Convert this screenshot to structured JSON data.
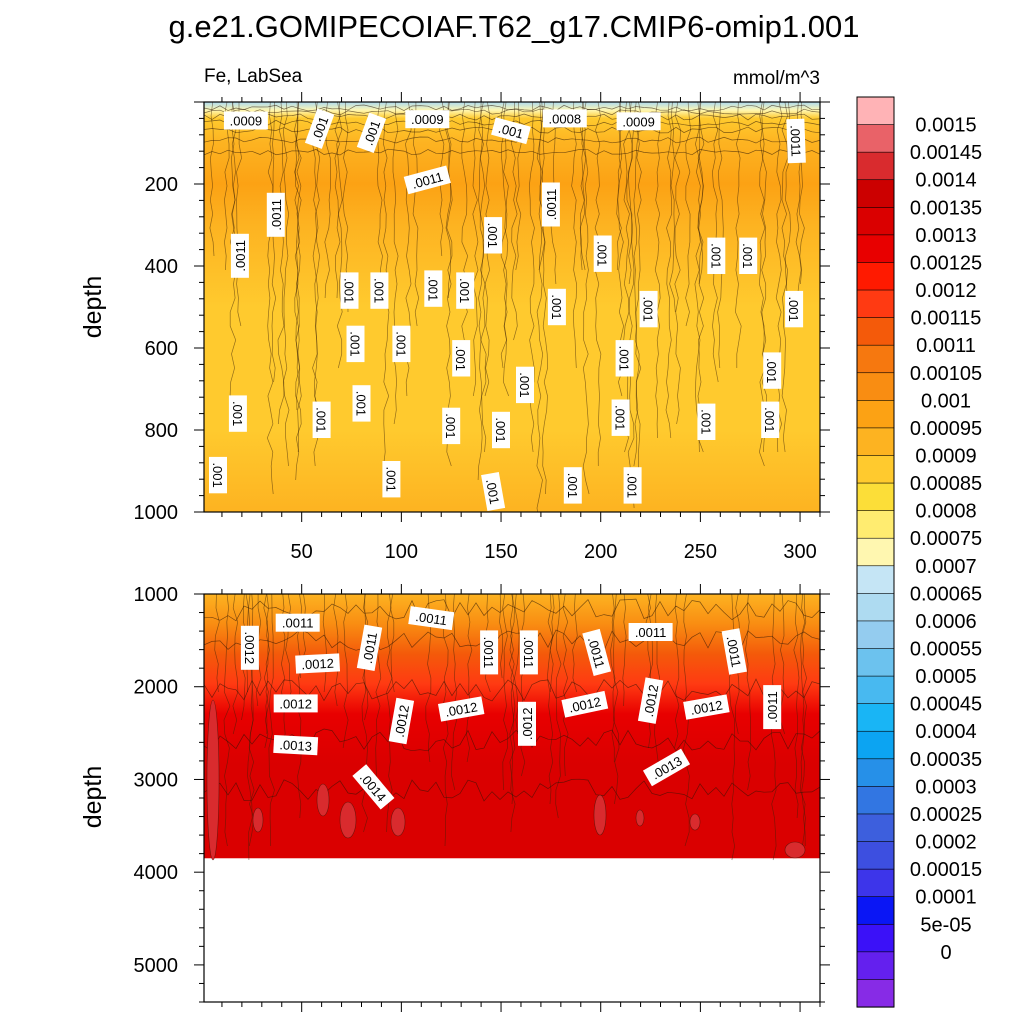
{
  "chart_data": {
    "type": "heatmap",
    "title": "g.e21.GOMIPECOIAF.T62_g17.CMIP6-omip1.001",
    "left_subtitle": "Fe, LabSea",
    "right_subtitle": "mmol/m^3",
    "xlabel": "",
    "ylabel": "depth",
    "panels": [
      {
        "name": "upper",
        "ylim": [
          1000,
          0
        ],
        "xlim": [
          1,
          310
        ],
        "y_ticks": [
          {
            "value": 200,
            "label": "200"
          },
          {
            "value": 400,
            "label": "400"
          },
          {
            "value": 600,
            "label": "600"
          },
          {
            "value": 800,
            "label": "800"
          },
          {
            "value": 1000,
            "label": "1000"
          }
        ],
        "x_ticks": [
          {
            "value": 50,
            "label": "50"
          },
          {
            "value": 100,
            "label": "100"
          },
          {
            "value": 150,
            "label": "150"
          },
          {
            "value": 200,
            "label": "200"
          },
          {
            "value": 250,
            "label": "250"
          },
          {
            "value": 300,
            "label": "300"
          }
        ],
        "depth_profile": [
          {
            "depth": 0,
            "value": 0.00072
          },
          {
            "depth": 20,
            "value": 0.00082
          },
          {
            "depth": 40,
            "value": 0.00095
          },
          {
            "depth": 100,
            "value": 0.00105
          },
          {
            "depth": 200,
            "value": 0.00108
          },
          {
            "depth": 300,
            "value": 0.00102
          },
          {
            "depth": 500,
            "value": 0.00097
          },
          {
            "depth": 800,
            "value": 0.00098
          },
          {
            "depth": 1000,
            "value": 0.00102
          }
        ],
        "contour_labels": [
          {
            "text": ".0009",
            "x": 22,
            "depth": 45,
            "angle": 0
          },
          {
            "text": ".001",
            "x": 59,
            "depth": 65,
            "angle": -70
          },
          {
            "text": ".001",
            "x": 85,
            "depth": 75,
            "angle": -70
          },
          {
            "text": ".0009",
            "x": 113,
            "depth": 42,
            "angle": 0
          },
          {
            "text": ".001",
            "x": 155,
            "depth": 70,
            "angle": 15
          },
          {
            "text": ".0008",
            "x": 182,
            "depth": 40,
            "angle": 0
          },
          {
            "text": ".0009",
            "x": 219,
            "depth": 47,
            "angle": 0
          },
          {
            "text": ".0011",
            "x": 298,
            "depth": 95,
            "angle": 88
          },
          {
            "text": ".0011",
            "x": 113,
            "depth": 190,
            "angle": -15
          },
          {
            "text": ".0011",
            "x": 175,
            "depth": 250,
            "angle": -90
          },
          {
            "text": ".0011",
            "x": 37,
            "depth": 275,
            "angle": -90
          },
          {
            "text": ".0011",
            "x": 19,
            "depth": 375,
            "angle": -90
          },
          {
            "text": ".001",
            "x": 146,
            "depth": 325,
            "angle": 90
          },
          {
            "text": ".001",
            "x": 201,
            "depth": 370,
            "angle": 90
          },
          {
            "text": ".001",
            "x": 258,
            "depth": 375,
            "angle": 90
          },
          {
            "text": ".001",
            "x": 274,
            "depth": 375,
            "angle": 90
          },
          {
            "text": ".001",
            "x": 74,
            "depth": 460,
            "angle": 90
          },
          {
            "text": ".001",
            "x": 89,
            "depth": 460,
            "angle": 90
          },
          {
            "text": ".001",
            "x": 116,
            "depth": 455,
            "angle": 90
          },
          {
            "text": ".001",
            "x": 132,
            "depth": 460,
            "angle": 90
          },
          {
            "text": ".001",
            "x": 178,
            "depth": 500,
            "angle": 90
          },
          {
            "text": ".001",
            "x": 224,
            "depth": 505,
            "angle": 90
          },
          {
            "text": ".001",
            "x": 297,
            "depth": 505,
            "angle": 90
          },
          {
            "text": ".001",
            "x": 77,
            "depth": 590,
            "angle": 90
          },
          {
            "text": ".001",
            "x": 100,
            "depth": 590,
            "angle": 90
          },
          {
            "text": ".001",
            "x": 130,
            "depth": 625,
            "angle": 90
          },
          {
            "text": ".001",
            "x": 212,
            "depth": 625,
            "angle": 90
          },
          {
            "text": ".001",
            "x": 286,
            "depth": 655,
            "angle": 90
          },
          {
            "text": ".001",
            "x": 162,
            "depth": 690,
            "angle": 90
          },
          {
            "text": ".001",
            "x": 18,
            "depth": 760,
            "angle": 90
          },
          {
            "text": ".001",
            "x": 60,
            "depth": 775,
            "angle": 90
          },
          {
            "text": ".001",
            "x": 80,
            "depth": 735,
            "angle": 90
          },
          {
            "text": ".001",
            "x": 125,
            "depth": 790,
            "angle": 90
          },
          {
            "text": ".001",
            "x": 150,
            "depth": 800,
            "angle": 90
          },
          {
            "text": ".001",
            "x": 210,
            "depth": 770,
            "angle": 90
          },
          {
            "text": ".001",
            "x": 253,
            "depth": 780,
            "angle": 90
          },
          {
            "text": ".001",
            "x": 285,
            "depth": 775,
            "angle": 90
          },
          {
            "text": ".001",
            "x": 8,
            "depth": 910,
            "angle": 90
          },
          {
            "text": ".001",
            "x": 95,
            "depth": 920,
            "angle": 90
          },
          {
            "text": ".001",
            "x": 186,
            "depth": 935,
            "angle": 90
          },
          {
            "text": ".001",
            "x": 216,
            "depth": 935,
            "angle": 90
          },
          {
            "text": ".001",
            "x": 146,
            "depth": 950,
            "angle": 80
          }
        ]
      },
      {
        "name": "lower",
        "ylim": [
          5400,
          1000
        ],
        "xlim": [
          1,
          310
        ],
        "data_bottom_depth": 3850,
        "y_ticks": [
          {
            "value": 1000,
            "label": "1000"
          },
          {
            "value": 2000,
            "label": "2000"
          },
          {
            "value": 3000,
            "label": "3000"
          },
          {
            "value": 4000,
            "label": "4000"
          },
          {
            "value": 5000,
            "label": "5000"
          }
        ],
        "depth_profile": [
          {
            "depth": 1000,
            "value": 0.00105
          },
          {
            "depth": 1500,
            "value": 0.00113
          },
          {
            "depth": 2000,
            "value": 0.00122
          },
          {
            "depth": 2500,
            "value": 0.0013
          },
          {
            "depth": 3000,
            "value": 0.00137
          },
          {
            "depth": 3850,
            "value": 0.00141
          }
        ],
        "contour_labels": [
          {
            "text": ".0011",
            "x": 48,
            "depth": 1310,
            "angle": 0
          },
          {
            "text": ".0011",
            "x": 115,
            "depth": 1260,
            "angle": 8
          },
          {
            "text": ".0012",
            "x": 24,
            "depth": 1580,
            "angle": 90
          },
          {
            "text": ".0012",
            "x": 58,
            "depth": 1750,
            "angle": -3
          },
          {
            "text": ".0011",
            "x": 84,
            "depth": 1580,
            "angle": -80
          },
          {
            "text": ".0011",
            "x": 144,
            "depth": 1630,
            "angle": 90
          },
          {
            "text": ".0011",
            "x": 164,
            "depth": 1630,
            "angle": 90
          },
          {
            "text": ".0011",
            "x": 198,
            "depth": 1630,
            "angle": 75
          },
          {
            "text": ".0011",
            "x": 225,
            "depth": 1410,
            "angle": 0
          },
          {
            "text": ".0011",
            "x": 267,
            "depth": 1620,
            "angle": 80
          },
          {
            "text": ".0012",
            "x": 47,
            "depth": 2180,
            "angle": 0
          },
          {
            "text": ".0011",
            "x": 286,
            "depth": 2220,
            "angle": -90
          },
          {
            "text": ".0012",
            "x": 100,
            "depth": 2370,
            "angle": -80
          },
          {
            "text": ".0012",
            "x": 130,
            "depth": 2240,
            "angle": -10
          },
          {
            "text": ".0012",
            "x": 163,
            "depth": 2400,
            "angle": -90
          },
          {
            "text": ".0012",
            "x": 192,
            "depth": 2190,
            "angle": -12
          },
          {
            "text": ".0012",
            "x": 225,
            "depth": 2150,
            "angle": -80
          },
          {
            "text": ".0012",
            "x": 253,
            "depth": 2220,
            "angle": -10
          },
          {
            "text": ".0013",
            "x": 47,
            "depth": 2630,
            "angle": 3
          },
          {
            "text": ".0014",
            "x": 86,
            "depth": 3080,
            "angle": 50
          },
          {
            "text": ".0013",
            "x": 233,
            "depth": 2870,
            "angle": -30
          }
        ]
      }
    ],
    "colorbar": {
      "labels": [
        "0.0015",
        "0.00145",
        "0.0014",
        "0.00135",
        "0.0013",
        "0.00125",
        "0.0012",
        "0.00115",
        "0.0011",
        "0.00105",
        "0.001",
        "0.00095",
        "0.0009",
        "0.00085",
        "0.0008",
        "0.00075",
        "0.0007",
        "0.00065",
        "0.0006",
        "0.00055",
        "0.0005",
        "0.00045",
        "0.0004",
        "0.00035",
        "0.0003",
        "0.00025",
        "0.0002",
        "0.00015",
        "0.0001",
        "5e-05",
        "0"
      ],
      "colors_top_to_bottom": [
        "#FFB3B6",
        "#E96268",
        "#D92B2E",
        "#CC0000",
        "#DA0000",
        "#E80000",
        "#FF1A00",
        "#FF3A12",
        "#F45A0A",
        "#F6780F",
        "#F98D12",
        "#FCA214",
        "#FDB321",
        "#FFCA2E",
        "#FCDE38",
        "#FFEC70",
        "#FFF7B0",
        "#C5E5F5",
        "#AEDBF1",
        "#94CCEF",
        "#6CC2EE",
        "#48B9F0",
        "#19B5F5",
        "#0CA4F2",
        "#2690E8",
        "#3276E2",
        "#3D5FDD",
        "#3D4FE0",
        "#3D35EA",
        "#0A16F5",
        "#3B11F8",
        "#6420EE",
        "#872BE6"
      ]
    }
  }
}
